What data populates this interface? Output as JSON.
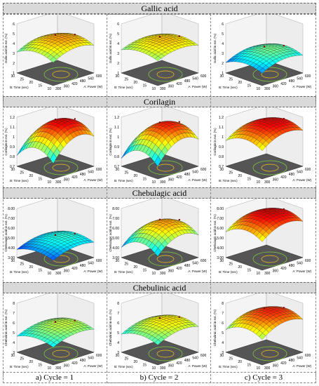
{
  "panels": [
    {
      "title": "Gallic acid",
      "ylabel": "Gallic acid in ext. (%)",
      "zticks": [
        "1",
        "2",
        "3",
        "4",
        "5",
        "6"
      ],
      "zmin": 1,
      "zmax": 6,
      "surfaces": [
        {
          "base": 3.2,
          "peak": 4.6,
          "tilt": 0.25
        },
        {
          "base": 3.4,
          "peak": 4.4,
          "tilt": 0.15
        },
        {
          "base": 2.2,
          "peak": 3.4,
          "tilt": 0.35
        }
      ]
    },
    {
      "title": "Corilagin",
      "ylabel": "Corilagin in ext. (%)",
      "zticks": [
        "0.7",
        "0.8",
        "0.9",
        "1",
        "1.1",
        "1.2"
      ],
      "zmin": 0.7,
      "zmax": 1.2,
      "surfaces": [
        {
          "base": 0.85,
          "peak": 1.15,
          "tilt": 0.1
        },
        {
          "base": 0.82,
          "peak": 1.12,
          "tilt": 0.1
        },
        {
          "base": 0.98,
          "peak": 1.15,
          "tilt": 0.05
        }
      ]
    },
    {
      "title": "Chebulagic acid",
      "ylabel": "Chebulagic acid in ext. (%)",
      "zticks": [
        "3.00",
        "4.00",
        "5.00",
        "6.00",
        "7.00",
        "8.00"
      ],
      "zmin": 3,
      "zmax": 8,
      "surfaces": [
        {
          "base": 4.0,
          "peak": 5.0,
          "tilt": 0.4
        },
        {
          "base": 4.2,
          "peak": 6.6,
          "tilt": 0.5
        },
        {
          "base": 5.8,
          "peak": 7.6,
          "tilt": 0.5
        }
      ]
    },
    {
      "title": "Chebulinic acid",
      "ylabel": "Chebulinic acid in ext. (%)",
      "zticks": [
        "3",
        "4",
        "5",
        "6",
        "7",
        "8"
      ],
      "zmin": 3,
      "zmax": 8,
      "surfaces": [
        {
          "base": 4.8,
          "peak": 5.8,
          "tilt": 0.4
        },
        {
          "base": 5.0,
          "peak": 6.2,
          "tilt": 0.4
        },
        {
          "base": 5.5,
          "peak": 7.2,
          "tilt": 0.5
        }
      ]
    }
  ],
  "axes": {
    "b_label": "B: Time (sec)",
    "a_label": "A: Power (W)",
    "b_ticks": [
      "30",
      "25",
      "20",
      "15",
      "10"
    ],
    "a_ticks": [
      "300",
      "360",
      "420",
      "480",
      "540",
      "600"
    ]
  },
  "captions": [
    "a) Cycle = 1",
    "b) Cycle = 2",
    "c) Cycle = 3"
  ],
  "chart_data": {
    "type": "surface-grid",
    "rows": [
      "Gallic acid",
      "Corilagin",
      "Chebulagic acid",
      "Chebulinic acid"
    ],
    "columns": [
      "a) Cycle = 1",
      "b) Cycle = 2",
      "c) Cycle = 3"
    ],
    "x": {
      "label": "A: Power (W)",
      "range": [
        300,
        600
      ]
    },
    "y": {
      "label": "B: Time (sec)",
      "range": [
        10,
        30
      ]
    }
  }
}
